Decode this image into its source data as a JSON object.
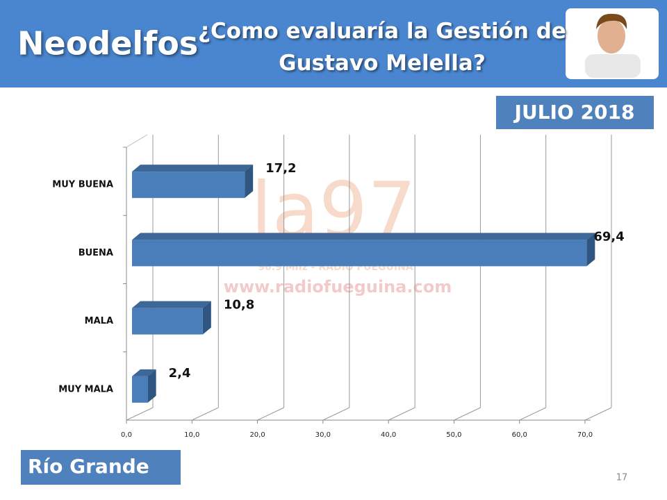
{
  "brand": "Neodelfos",
  "badge": "JULIO 2018",
  "location": "Río Grande",
  "page_number": "17",
  "watermark": {
    "logo": "la97",
    "station": "96.9 Mhz - RADIO FUEGUINA",
    "url": "www.radiofueguina.com"
  },
  "chart_data": {
    "type": "bar",
    "orientation": "horizontal",
    "title": "¿Como evaluaría la Gestión de Gustavo Melella?",
    "categories": [
      "MUY BUENA",
      "BUENA",
      "MALA",
      "MUY MALA"
    ],
    "values": [
      17.2,
      69.4,
      10.8,
      2.4
    ],
    "value_labels": [
      "17,2",
      "69,4",
      "10,8",
      "2,4"
    ],
    "color": "#4a7ebb",
    "xlim": [
      0,
      70
    ],
    "xticks": [
      {
        "value": 0,
        "label": "0,0"
      },
      {
        "value": 10,
        "label": "10,0"
      },
      {
        "value": 20,
        "label": "20,0"
      },
      {
        "value": 30,
        "label": "30,0"
      },
      {
        "value": 40,
        "label": "40,0"
      },
      {
        "value": 50,
        "label": "50,0"
      },
      {
        "value": 60,
        "label": "60,0"
      },
      {
        "value": 70,
        "label": "70,0"
      }
    ],
    "grid": true
  }
}
